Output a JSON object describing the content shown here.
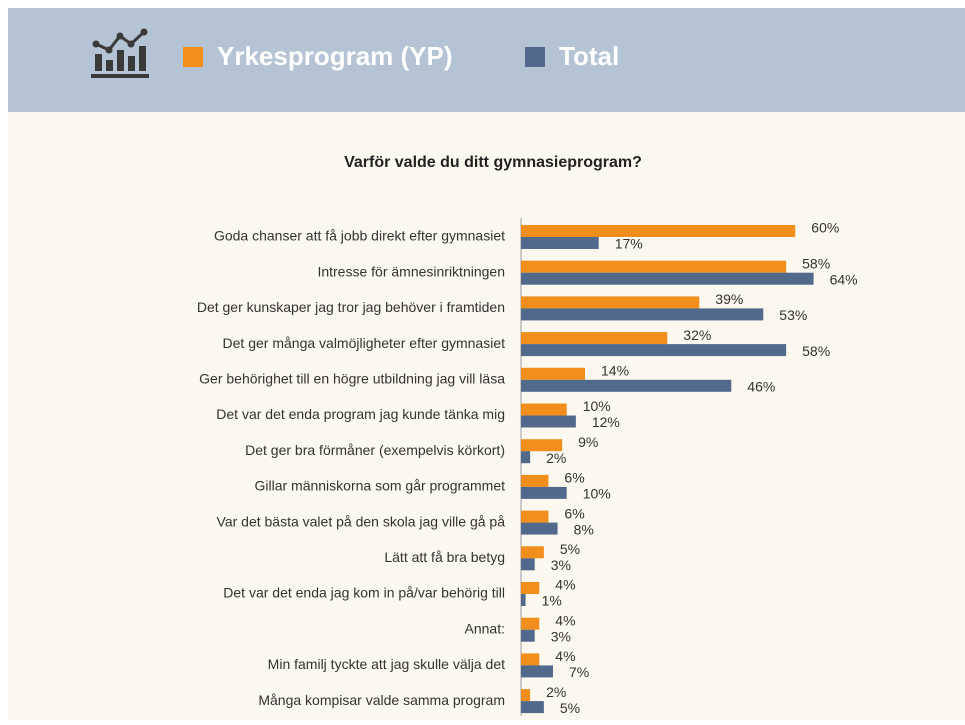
{
  "chart_data": {
    "type": "barh",
    "title": "Varför valde du ditt gymnasieprogram?",
    "categories": [
      "Goda chanser att få jobb direkt efter gymnasiet",
      "Intresse för ämnesinriktningen",
      "Det ger kunskaper jag tror jag behöver i framtiden",
      "Det ger många valmöjligheter efter gymnasiet",
      "Ger behörighet till en högre utbildning jag vill läsa",
      "Det var det enda program jag kunde tänka mig",
      "Det ger bra förmåner (exempelvis körkort)",
      "Gillar människorna som går programmet",
      "Var det bästa valet på den skola jag ville gå på",
      "Lätt att få bra betyg",
      "Det var det enda jag kom in på/var behörig till",
      "Annat:",
      "Min familj tyckte att jag skulle välja det",
      "Många kompisar valde samma program"
    ],
    "series": [
      {
        "name": "Yrkesprogram (YP)",
        "color": "#f18e1c",
        "values": [
          60,
          58,
          39,
          32,
          14,
          10,
          9,
          6,
          6,
          5,
          4,
          4,
          4,
          2
        ],
        "value_labels": [
          "60%",
          "58%",
          "39%",
          "32%",
          "14%",
          "10%",
          "9%",
          "6%",
          "6%",
          "5%",
          "4%",
          "4%",
          "4%",
          "2%"
        ]
      },
      {
        "name": "Total",
        "color": "#51698a",
        "values": [
          17,
          64,
          53,
          58,
          46,
          12,
          2,
          10,
          8,
          3,
          1,
          3,
          7,
          5
        ],
        "value_labels": [
          "17%",
          "64%",
          "53%",
          "58%",
          "46%",
          "12%",
          "2%",
          "10%",
          "8%",
          "3%",
          "1%",
          "3%",
          "7%",
          "5%"
        ]
      }
    ],
    "xlim": [
      0,
      70
    ],
    "legend": "top"
  }
}
